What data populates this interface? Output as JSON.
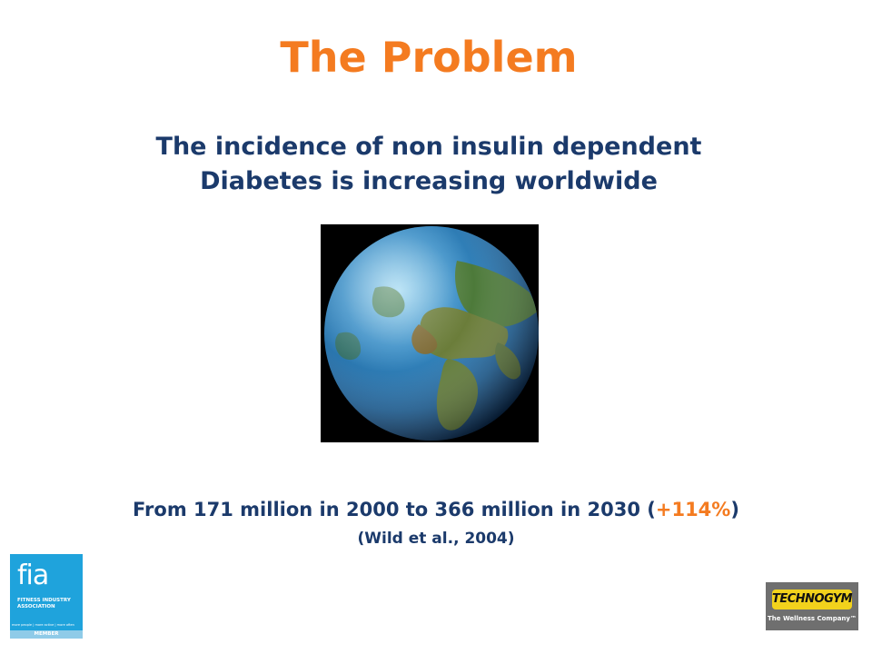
{
  "slide": {
    "title": "The Problem",
    "subtitle_line1": "The incidence of non insulin dependent",
    "subtitle_line2": "Diabetes is increasing worldwide",
    "stat_prefix": "From 171 million in 2000 to 366 million in 2030 (",
    "stat_highlight": "+114%",
    "stat_suffix": ")",
    "citation": "(Wild et al., 2004)"
  },
  "logos": {
    "fia_mark": "fia",
    "fia_name": "FITNESS INDUSTRY ASSOCIATION",
    "fia_tagline": "more people | more active | more often",
    "fia_member": "MEMBER",
    "technogym_name": "TECHNOGYM",
    "technogym_tagline": "The Wellness Company™"
  },
  "colors": {
    "accent": "#F47B20",
    "text_primary": "#1B3A6B",
    "fia_blue": "#1FA3DC",
    "technogym_yellow": "#F2D21C"
  }
}
